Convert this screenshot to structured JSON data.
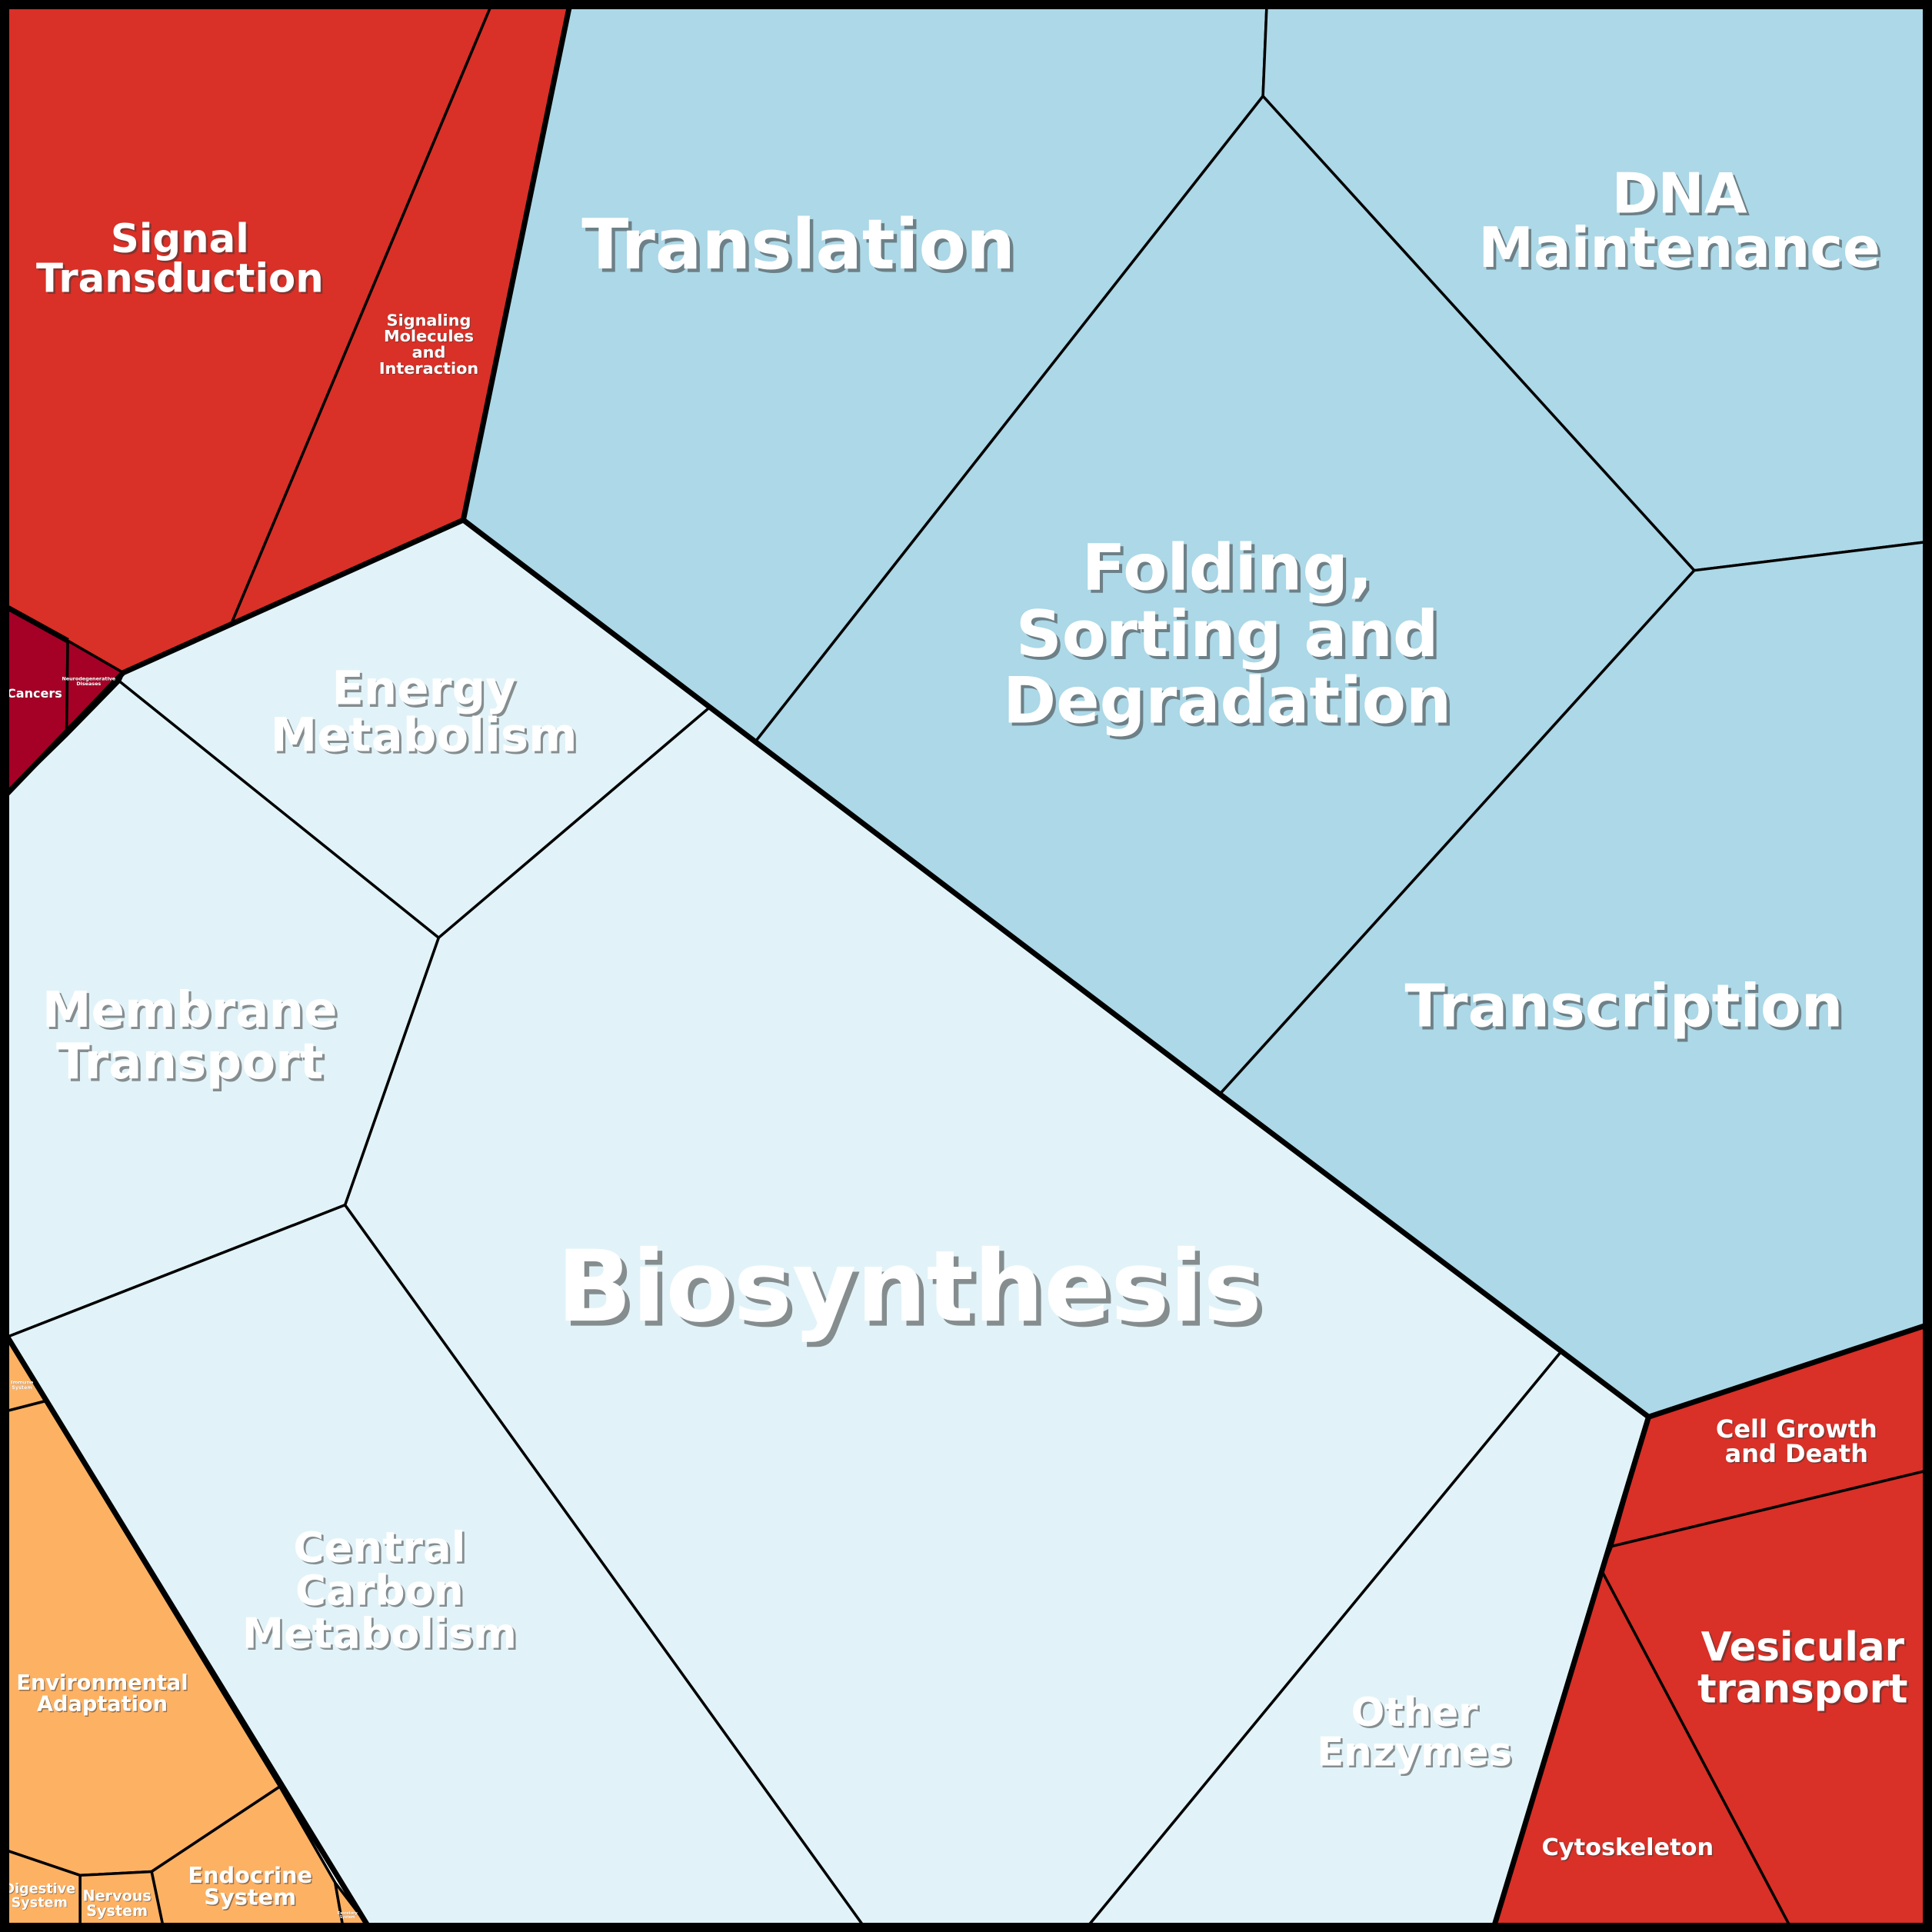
{
  "colors": {
    "genetic_information_processing": "#acd8e7",
    "metabolism": "#e1f3f8",
    "cellular_processes": "#d93027",
    "environmental_information_processing": "#d93027",
    "human_diseases": "#a50026",
    "organismal_systems": "#fdb163",
    "border": "#000000",
    "label": "#ffffff"
  },
  "cells": [
    {
      "id": "translation",
      "label": "Translation",
      "group": "genetic_information_processing"
    },
    {
      "id": "dna-maintenance",
      "label": "DNA\nMaintenance",
      "group": "genetic_information_processing"
    },
    {
      "id": "folding-sorting-degradation",
      "label": "Folding,\nSorting and\nDegradation",
      "group": "genetic_information_processing"
    },
    {
      "id": "transcription",
      "label": "Transcription",
      "group": "genetic_information_processing"
    },
    {
      "id": "biosynthesis",
      "label": "Biosynthesis",
      "group": "metabolism"
    },
    {
      "id": "energy-metabolism",
      "label": "Energy\nMetabolism",
      "group": "metabolism"
    },
    {
      "id": "membrane-transport",
      "label": "Membrane\nTransport",
      "group": "metabolism"
    },
    {
      "id": "central-carbon-metabolism",
      "label": "Central\nCarbon\nMetabolism",
      "group": "metabolism"
    },
    {
      "id": "other-enzymes",
      "label": "Other\nEnzymes",
      "group": "metabolism"
    },
    {
      "id": "signal-transduction",
      "label": "Signal\nTransduction",
      "group": "environmental_information_processing"
    },
    {
      "id": "signaling-molecules",
      "label": "Signaling\nMolecules\nand\nInteraction",
      "group": "environmental_information_processing"
    },
    {
      "id": "cancers",
      "label": "Cancers",
      "group": "human_diseases"
    },
    {
      "id": "neurodegenerative",
      "label": "Neurodegenerative\nDiseases",
      "group": "human_diseases"
    },
    {
      "id": "cell-growth-death",
      "label": "Cell Growth\nand Death",
      "group": "cellular_processes"
    },
    {
      "id": "vesicular-transport",
      "label": "Vesicular\ntransport",
      "group": "cellular_processes"
    },
    {
      "id": "cytoskeleton",
      "label": "Cytoskeleton",
      "group": "cellular_processes"
    },
    {
      "id": "environmental-adaptation",
      "label": "Environmental\nAdaptation",
      "group": "organismal_systems"
    },
    {
      "id": "endocrine-system",
      "label": "Endocrine\nSystem",
      "group": "organismal_systems"
    },
    {
      "id": "nervous-system",
      "label": "Nervous\nSystem",
      "group": "organismal_systems"
    },
    {
      "id": "digestive-system",
      "label": "Digestive\nSystem",
      "group": "organismal_systems"
    },
    {
      "id": "immune-system",
      "label": "Immune\nSystem",
      "group": "organismal_systems"
    },
    {
      "id": "excretory-system",
      "label": "Excretory\nSystem",
      "group": "organismal_systems"
    }
  ]
}
